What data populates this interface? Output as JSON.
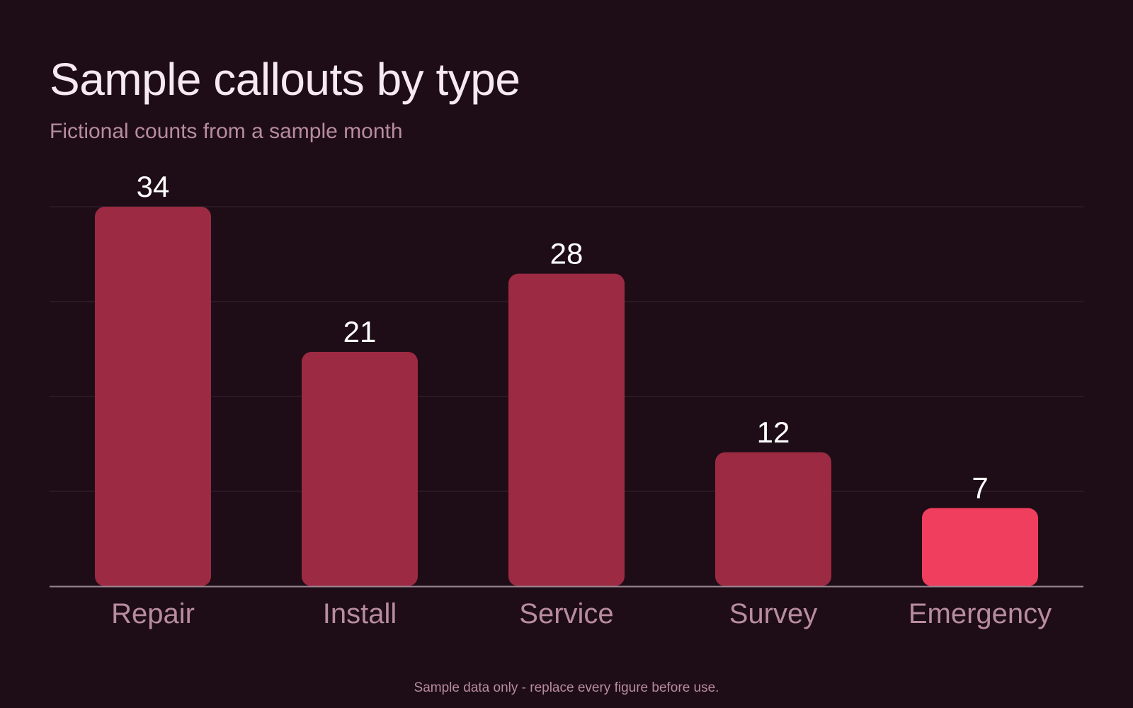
{
  "colors": {
    "background": "#1e0d17",
    "title": "#f6e9f0",
    "subtitle": "#b88c9f",
    "bar": "#9c2a42",
    "bar_highlight": "#f03e5e",
    "grid": "#3a2431",
    "baseline": "#9a8591",
    "value_label": "#ffffff",
    "category_label": "#b88c9f",
    "footnote": "#b88c9f"
  },
  "footnote": "Sample data only - replace every figure before use.",
  "chart_data": {
    "type": "bar",
    "title": "Sample callouts by type",
    "subtitle": "Fictional counts from a sample month",
    "categories": [
      "Repair",
      "Install",
      "Service",
      "Survey",
      "Emergency"
    ],
    "values": [
      34,
      21,
      28,
      12,
      7
    ],
    "highlight_index": 4,
    "xlabel": "",
    "ylabel": "",
    "ylim": [
      0,
      34
    ],
    "grid": true,
    "gridlines": 4,
    "data_labels": true,
    "legend": "none"
  }
}
